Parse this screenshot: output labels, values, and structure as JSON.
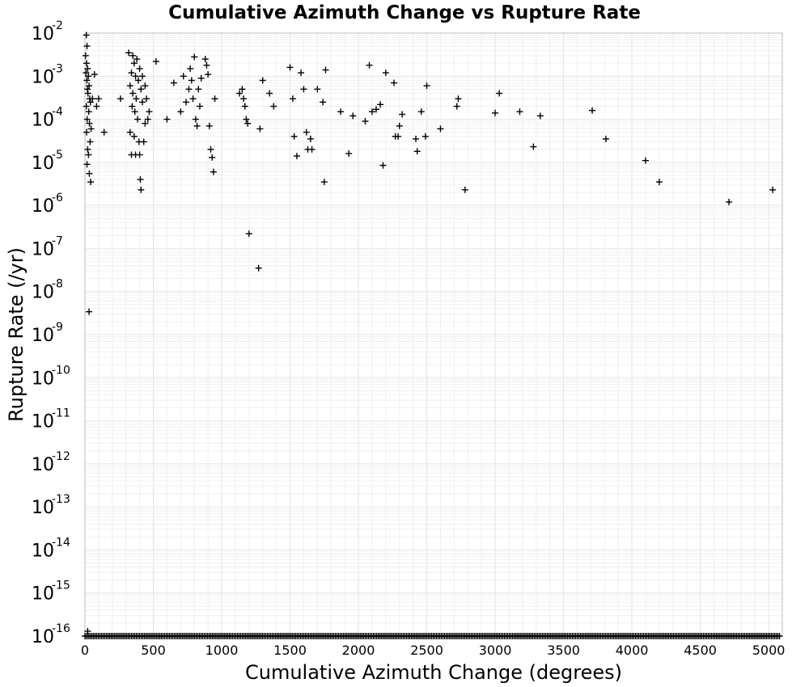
{
  "chart_data": {
    "type": "scatter",
    "title": "Cumulative Azimuth Change vs Rupture Rate",
    "xlabel": "Cumulative Azimuth Change (degrees)",
    "ylabel": "Rupture Rate (/yr)",
    "xlim": [
      0,
      5100
    ],
    "ylim": [
      1e-16,
      0.01
    ],
    "yscale": "log",
    "grid": true,
    "marker": "plus",
    "marker_color": "#000000",
    "x_ticks": [
      "0",
      "500",
      "1000",
      "1500",
      "2000",
      "2500",
      "3000",
      "3500",
      "4000",
      "4500",
      "5000"
    ],
    "y_ticks": [
      {
        "base": "10",
        "exp": "-2"
      },
      {
        "base": "10",
        "exp": "-3"
      },
      {
        "base": "10",
        "exp": "-4"
      },
      {
        "base": "10",
        "exp": "-5"
      },
      {
        "base": "10",
        "exp": "-6"
      },
      {
        "base": "10",
        "exp": "-7"
      },
      {
        "base": "10",
        "exp": "-8"
      },
      {
        "base": "10",
        "exp": "-9"
      },
      {
        "base": "10",
        "exp": "-10"
      },
      {
        "base": "10",
        "exp": "-11"
      },
      {
        "base": "10",
        "exp": "-12"
      },
      {
        "base": "10",
        "exp": "-13"
      },
      {
        "base": "10",
        "exp": "-14"
      },
      {
        "base": "10",
        "exp": "-15"
      },
      {
        "base": "10",
        "exp": "-16"
      }
    ],
    "series": [
      {
        "points": [
          [
            10,
            0.009
          ],
          [
            15,
            0.005
          ],
          [
            5,
            0.003
          ],
          [
            12,
            0.002
          ],
          [
            20,
            0.0015
          ],
          [
            8,
            0.0012
          ],
          [
            25,
            0.001
          ],
          [
            14,
            0.0008
          ],
          [
            30,
            0.0006
          ],
          [
            18,
            0.0005
          ],
          [
            22,
            0.0004
          ],
          [
            35,
            0.0003
          ],
          [
            40,
            0.00025
          ],
          [
            10,
            0.0002
          ],
          [
            28,
            0.00015
          ],
          [
            16,
            0.0001
          ],
          [
            33,
            8e-05
          ],
          [
            45,
            6e-05
          ],
          [
            12,
            5e-05
          ],
          [
            38,
            3e-05
          ],
          [
            20,
            2e-05
          ],
          [
            26,
            1.5e-05
          ],
          [
            15,
            9e-06
          ],
          [
            32,
            5.5e-06
          ],
          [
            42,
            3.5e-06
          ],
          [
            55,
            0.0003
          ],
          [
            70,
            0.0011
          ],
          [
            85,
            0.0002
          ],
          [
            100,
            0.0003
          ],
          [
            140,
            5e-05
          ],
          [
            30,
            3.4e-09
          ],
          [
            260,
            0.0003
          ],
          [
            320,
            0.0035
          ],
          [
            350,
            0.003
          ],
          [
            380,
            0.0025
          ],
          [
            360,
            0.002
          ],
          [
            400,
            0.0015
          ],
          [
            340,
            0.0012
          ],
          [
            370,
            0.001
          ],
          [
            390,
            0.0008
          ],
          [
            330,
            0.0006
          ],
          [
            410,
            0.0005
          ],
          [
            350,
            0.0004
          ],
          [
            375,
            0.0003
          ],
          [
            420,
            0.00025
          ],
          [
            345,
            0.0002
          ],
          [
            365,
            0.00015
          ],
          [
            385,
            0.0001
          ],
          [
            440,
            8e-05
          ],
          [
            330,
            5e-05
          ],
          [
            360,
            4e-05
          ],
          [
            395,
            3e-05
          ],
          [
            430,
            3e-05
          ],
          [
            340,
            1.5e-05
          ],
          [
            370,
            1.5e-05
          ],
          [
            400,
            1.5e-05
          ],
          [
            405,
            4e-06
          ],
          [
            410,
            2.3e-06
          ],
          [
            450,
            0.0003
          ],
          [
            460,
            0.0001
          ],
          [
            470,
            0.00015
          ],
          [
            420,
            0.001
          ],
          [
            440,
            0.0006
          ],
          [
            520,
            0.0022
          ],
          [
            600,
            0.0001
          ],
          [
            650,
            0.0007
          ],
          [
            700,
            0.00015
          ],
          [
            720,
            0.001
          ],
          [
            740,
            0.00025
          ],
          [
            760,
            0.0005
          ],
          [
            770,
            0.0015
          ],
          [
            780,
            0.0008
          ],
          [
            790,
            0.0003
          ],
          [
            800,
            0.0028
          ],
          [
            810,
            0.0001
          ],
          [
            820,
            7e-05
          ],
          [
            830,
            0.0005
          ],
          [
            840,
            0.0002
          ],
          [
            850,
            0.0009
          ],
          [
            880,
            0.0025
          ],
          [
            890,
            0.0018
          ],
          [
            900,
            0.0011
          ],
          [
            910,
            7e-05
          ],
          [
            920,
            2e-05
          ],
          [
            930,
            1.3e-05
          ],
          [
            940,
            6e-06
          ],
          [
            950,
            0.0003
          ],
          [
            1130,
            0.0004
          ],
          [
            1150,
            0.0005
          ],
          [
            1160,
            0.0003
          ],
          [
            1170,
            0.0002
          ],
          [
            1180,
            0.0001
          ],
          [
            1190,
            8e-05
          ],
          [
            1200,
            2.2e-07
          ],
          [
            1270,
            3.5e-08
          ],
          [
            1280,
            6e-05
          ],
          [
            1300,
            0.0008
          ],
          [
            1350,
            0.0004
          ],
          [
            1380,
            0.0002
          ],
          [
            1500,
            0.0016
          ],
          [
            1520,
            0.0003
          ],
          [
            1530,
            4e-05
          ],
          [
            1550,
            1.4e-05
          ],
          [
            1580,
            0.0012
          ],
          [
            1600,
            0.0005
          ],
          [
            1620,
            5e-05
          ],
          [
            1630,
            2e-05
          ],
          [
            1650,
            3.5e-05
          ],
          [
            1660,
            2e-05
          ],
          [
            1700,
            0.0005
          ],
          [
            1740,
            0.00025
          ],
          [
            1750,
            3.5e-06
          ],
          [
            1760,
            0.0014
          ],
          [
            1870,
            0.00015
          ],
          [
            1930,
            1.6e-05
          ],
          [
            1960,
            0.00012
          ],
          [
            2050,
            9e-05
          ],
          [
            2080,
            0.0018
          ],
          [
            2100,
            0.00015
          ],
          [
            2130,
            0.00017
          ],
          [
            2160,
            0.00022
          ],
          [
            2180,
            8.5e-06
          ],
          [
            2200,
            0.0012
          ],
          [
            2260,
            0.0007
          ],
          [
            2270,
            4e-05
          ],
          [
            2290,
            4e-05
          ],
          [
            2300,
            7e-05
          ],
          [
            2320,
            0.00013
          ],
          [
            2420,
            3.5e-05
          ],
          [
            2430,
            1.8e-05
          ],
          [
            2460,
            0.00015
          ],
          [
            2490,
            4e-05
          ],
          [
            2500,
            0.0006
          ],
          [
            2600,
            6e-05
          ],
          [
            2720,
            0.0002
          ],
          [
            2730,
            0.0003
          ],
          [
            2780,
            2.3e-06
          ],
          [
            3000,
            0.00014
          ],
          [
            3030,
            0.0004
          ],
          [
            3180,
            0.00015
          ],
          [
            3280,
            2.3e-05
          ],
          [
            3330,
            0.00012
          ],
          [
            3710,
            0.00016
          ],
          [
            3810,
            3.5e-05
          ],
          [
            4100,
            1.1e-05
          ],
          [
            4200,
            3.5e-06
          ],
          [
            4710,
            1.2e-06
          ],
          [
            5030,
            2.3e-06
          ],
          [
            20,
            1.3e-16
          ]
        ]
      },
      {
        "name": "",
        "points_from_uniform_baseline": true,
        "y_value": 1e-16,
        "x_range": [
          0,
          5080
        ],
        "count": 420
      }
    ]
  }
}
